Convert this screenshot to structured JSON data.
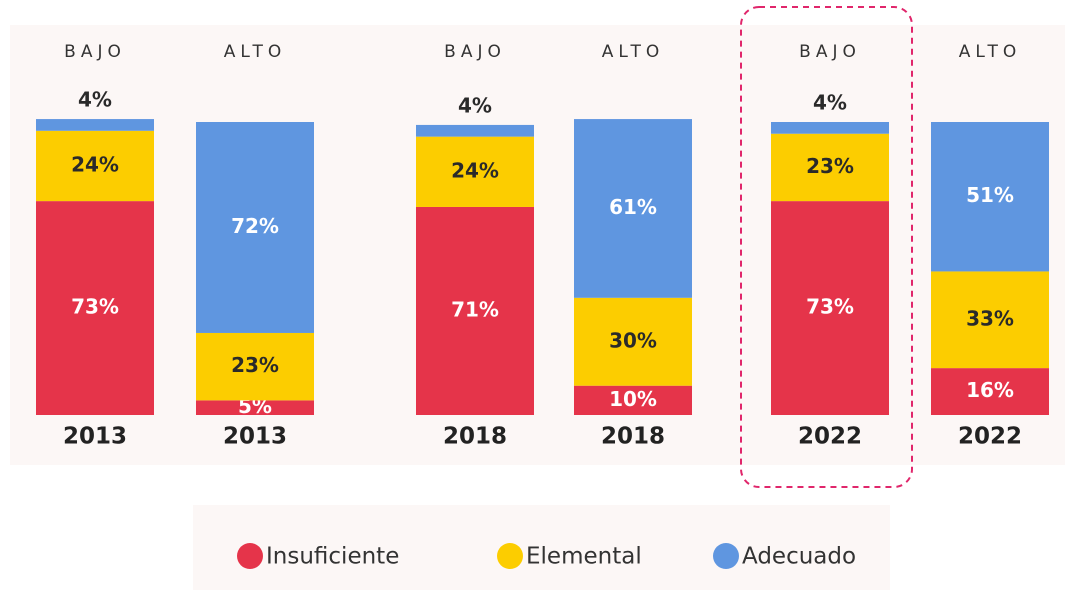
{
  "chart_data": {
    "type": "bar",
    "stacked": true,
    "categories": [
      "BAJO",
      "ALTO",
      "BAJO",
      "ALTO",
      "BAJO",
      "ALTO"
    ],
    "years": [
      "2013",
      "2013",
      "2018",
      "2018",
      "2022",
      "2022"
    ],
    "ylim": [
      0,
      100
    ],
    "series": [
      {
        "name": "Insuficiente",
        "color": "#e5344a",
        "values": [
          73,
          5,
          71,
          10,
          73,
          16
        ],
        "value_labels": [
          "73%",
          "5%",
          "71%",
          "10%",
          "73%",
          "16%"
        ]
      },
      {
        "name": "Elemental",
        "color": "#fccd00",
        "values": [
          24,
          23,
          24,
          30,
          23,
          33
        ],
        "value_labels": [
          "24%",
          "23%",
          "24%",
          "30%",
          "23%",
          "33%"
        ]
      },
      {
        "name": "Adecuado",
        "color": "#5f96e0",
        "values": [
          4,
          72,
          4,
          61,
          4,
          51
        ],
        "value_labels": [
          "4%",
          "72%",
          "4%",
          "61%",
          "4%",
          "51%"
        ]
      }
    ]
  }
}
